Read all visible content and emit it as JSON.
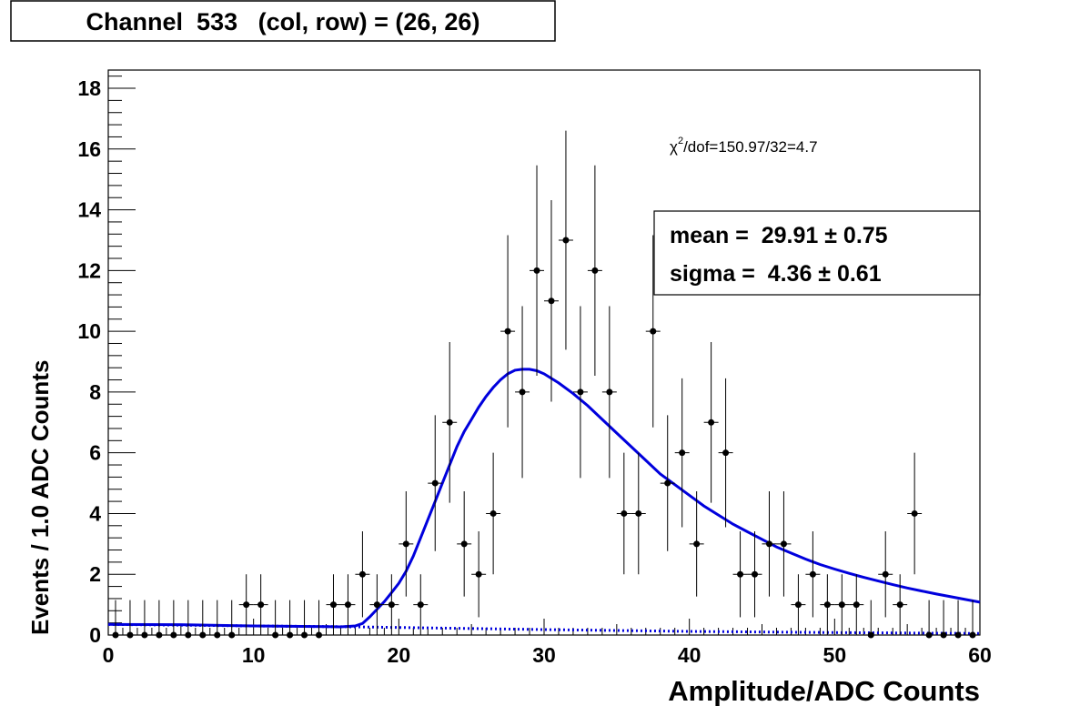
{
  "title": "Channel  533   (col, row) = (26, 26)",
  "stats": {
    "chi2_prefix": "χ",
    "chi2_sup": "2",
    "chi2_rest": "/dof=150.97/32=4.7",
    "mean_line": "mean =  29.91 ± 0.75",
    "sigma_line": "sigma =  4.36 ± 0.61"
  },
  "chart_data": {
    "type": "scatter",
    "title": "Channel  533   (col, row) = (26, 26)",
    "xlabel": "Amplitude/ADC Counts",
    "ylabel": "Events / 1.0 ADC Counts",
    "xlim": [
      0,
      60
    ],
    "ylim": [
      0,
      18.6
    ],
    "x_ticks": [
      "0",
      "10",
      "20",
      "30",
      "40",
      "50",
      "60"
    ],
    "y_ticks": [
      "0",
      "2",
      "4",
      "6",
      "8",
      "10",
      "12",
      "14",
      "16",
      "18"
    ],
    "grid": false,
    "series": [
      {
        "kind": "points_with_errors",
        "x": [
          0.5,
          1.5,
          2.5,
          3.5,
          4.5,
          5.5,
          6.5,
          7.5,
          8.5,
          9.5,
          10.5,
          11.5,
          12.5,
          13.5,
          14.5,
          15.5,
          16.5,
          17.5,
          18.5,
          19.5,
          20.5,
          21.5,
          22.5,
          23.5,
          24.5,
          25.5,
          26.5,
          27.5,
          28.5,
          29.5,
          30.5,
          31.5,
          32.5,
          33.5,
          34.5,
          35.5,
          36.5,
          37.5,
          38.5,
          39.5,
          40.5,
          41.5,
          42.5,
          43.5,
          44.5,
          45.5,
          46.5,
          47.5,
          48.5,
          49.5,
          50.5,
          51.5,
          52.5,
          53.5,
          54.5,
          55.5,
          56.5,
          57.5,
          58.5,
          59.5
        ],
        "y": [
          0,
          0,
          0,
          0,
          0,
          0,
          0,
          0,
          0,
          1,
          1,
          0,
          0,
          0,
          0,
          1,
          1,
          2,
          1,
          1,
          3,
          1,
          5,
          7,
          3,
          2,
          4,
          10,
          8,
          12,
          11,
          13,
          8,
          12,
          8,
          4,
          4,
          10,
          5,
          6,
          3,
          7,
          6,
          2,
          2,
          3,
          3,
          1,
          2,
          1,
          1,
          1,
          0,
          2,
          1,
          4,
          0,
          0,
          0,
          0
        ]
      },
      {
        "kind": "fit_curve",
        "style": "solid",
        "color": "#0000dd",
        "x": [
          0,
          5,
          10,
          15,
          16,
          17,
          17.5,
          18,
          18.5,
          19,
          19.5,
          20,
          20.5,
          21,
          21.5,
          22,
          22.5,
          23,
          23.5,
          24,
          24.5,
          25,
          25.5,
          26,
          26.5,
          27,
          27.5,
          28,
          28.5,
          29,
          29.5,
          30,
          31,
          32,
          33,
          34,
          35,
          36,
          37,
          38,
          39,
          40,
          41,
          42,
          43,
          44,
          45,
          46,
          47,
          48,
          49,
          50,
          51,
          52,
          53,
          54,
          55,
          56,
          57,
          58,
          59,
          60
        ],
        "y": [
          0.35,
          0.34,
          0.3,
          0.28,
          0.27,
          0.3,
          0.38,
          0.6,
          0.85,
          1.1,
          1.4,
          1.7,
          2.1,
          2.6,
          3.2,
          3.8,
          4.4,
          5.0,
          5.6,
          6.2,
          6.7,
          7.1,
          7.5,
          7.85,
          8.15,
          8.4,
          8.6,
          8.72,
          8.75,
          8.75,
          8.7,
          8.6,
          8.3,
          7.95,
          7.55,
          7.1,
          6.65,
          6.2,
          5.75,
          5.3,
          4.95,
          4.6,
          4.25,
          3.95,
          3.65,
          3.4,
          3.15,
          2.9,
          2.7,
          2.5,
          2.32,
          2.17,
          2.03,
          1.9,
          1.78,
          1.66,
          1.55,
          1.45,
          1.35,
          1.26,
          1.17,
          1.08
        ]
      },
      {
        "kind": "background_curve",
        "style": "dotted",
        "color": "#0000dd",
        "x": [
          0,
          10,
          17,
          20,
          30,
          40,
          50,
          60
        ],
        "y": [
          0.35,
          0.3,
          0.27,
          0.25,
          0.18,
          0.12,
          0.08,
          0.05
        ]
      }
    ]
  }
}
